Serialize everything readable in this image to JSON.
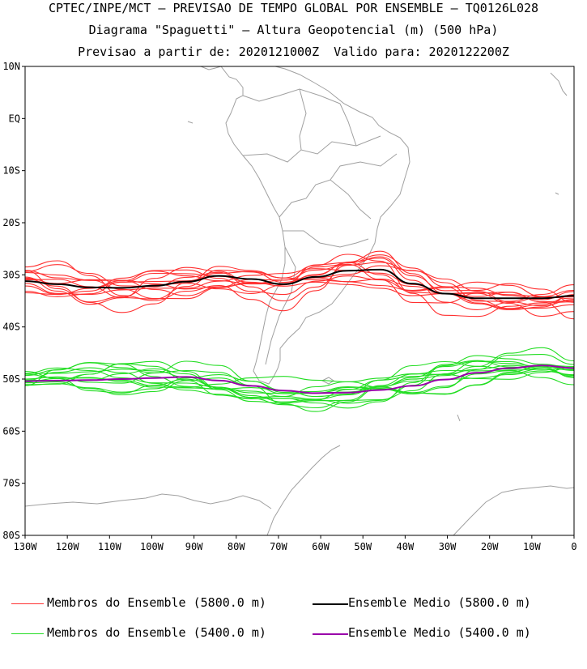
{
  "header": {
    "line1": "CPTEC/INPE/MCT – PREVISAO DE TEMPO GLOBAL POR ENSEMBLE – TQ0126L028",
    "line2": "Diagrama \"Spaguetti\" – Altura Geopotencial (m) (500 hPa)",
    "line3": "Previsao a partir de: 2020121000Z  Valido para: 2020122200Z"
  },
  "map": {
    "lat_ticks": [
      "10N",
      "EQ",
      "10S",
      "20S",
      "30S",
      "40S",
      "50S",
      "60S",
      "70S",
      "80S"
    ],
    "lon_ticks": [
      "130W",
      "120W",
      "110W",
      "100W",
      "90W",
      "80W",
      "70W",
      "60W",
      "50W",
      "40W",
      "30W",
      "20W",
      "10W",
      "0"
    ],
    "extent": {
      "lon": [
        -130,
        0
      ],
      "lat": [
        -80,
        10
      ]
    },
    "coastline_color": "#a0a0a0",
    "colors": {
      "members_5800": "#ff3030",
      "mean_5800": "#000000",
      "members_5400": "#22dd22",
      "mean_5400": "#9900aa"
    },
    "mean_5800_lat": [
      -31.2,
      -31.8,
      -32.4,
      -32.5,
      -32.1,
      -31.3,
      -30.2,
      -30.8,
      -31.8,
      -30.4,
      -29.2,
      -29.0,
      -31.7,
      -33.6,
      -34.5,
      -34.5,
      -34.5,
      -34.0
    ],
    "mean_5400_lat": [
      -50.4,
      -50.3,
      -50.2,
      -50.0,
      -49.8,
      -49.6,
      -50.3,
      -51.3,
      -52.2,
      -52.7,
      -52.6,
      -52.1,
      -51.3,
      -50.1,
      -48.8,
      -47.9,
      -47.4,
      -47.9
    ]
  },
  "legend": {
    "members_5800": "Membros do Ensemble (5800.0 m)",
    "mean_5800": "Ensemble Medio (5800.0 m)",
    "members_5400": "Membros do Ensemble (5400.0 m)",
    "mean_5400": "Ensemble Medio (5400.0 m)"
  }
}
